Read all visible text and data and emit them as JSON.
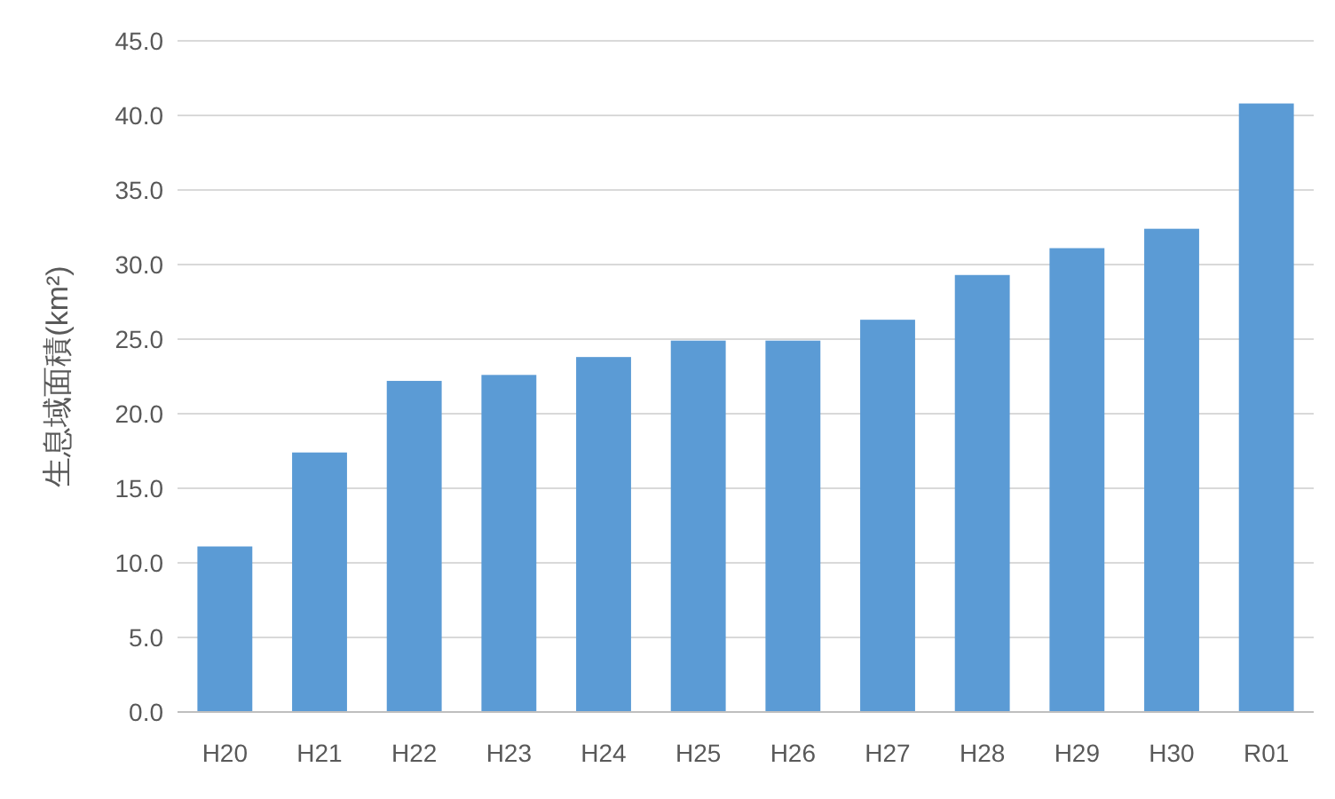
{
  "chart_data": {
    "type": "bar",
    "ylabel": "生息域面積(km²)",
    "categories": [
      "H20",
      "H21",
      "H22",
      "H23",
      "H24",
      "H25",
      "H26",
      "H27",
      "H28",
      "H29",
      "H30",
      "R01"
    ],
    "values": [
      11.1,
      17.4,
      22.2,
      22.6,
      23.8,
      24.9,
      24.9,
      26.3,
      29.3,
      31.1,
      32.4,
      40.8
    ],
    "color": "#5b9bd5",
    "ylim": [
      0,
      45
    ],
    "yticks": [
      {
        "value": 0,
        "label": "0.0"
      },
      {
        "value": 5,
        "label": "5.0"
      },
      {
        "value": 10,
        "label": "10.0"
      },
      {
        "value": 15,
        "label": "15.0"
      },
      {
        "value": 20,
        "label": "20.0"
      },
      {
        "value": 25,
        "label": "25.0"
      },
      {
        "value": 30,
        "label": "30.0"
      },
      {
        "value": 35,
        "label": "35.0"
      },
      {
        "value": 40,
        "label": "40.0"
      },
      {
        "value": 45,
        "label": "45.0"
      }
    ],
    "grid": "y"
  }
}
